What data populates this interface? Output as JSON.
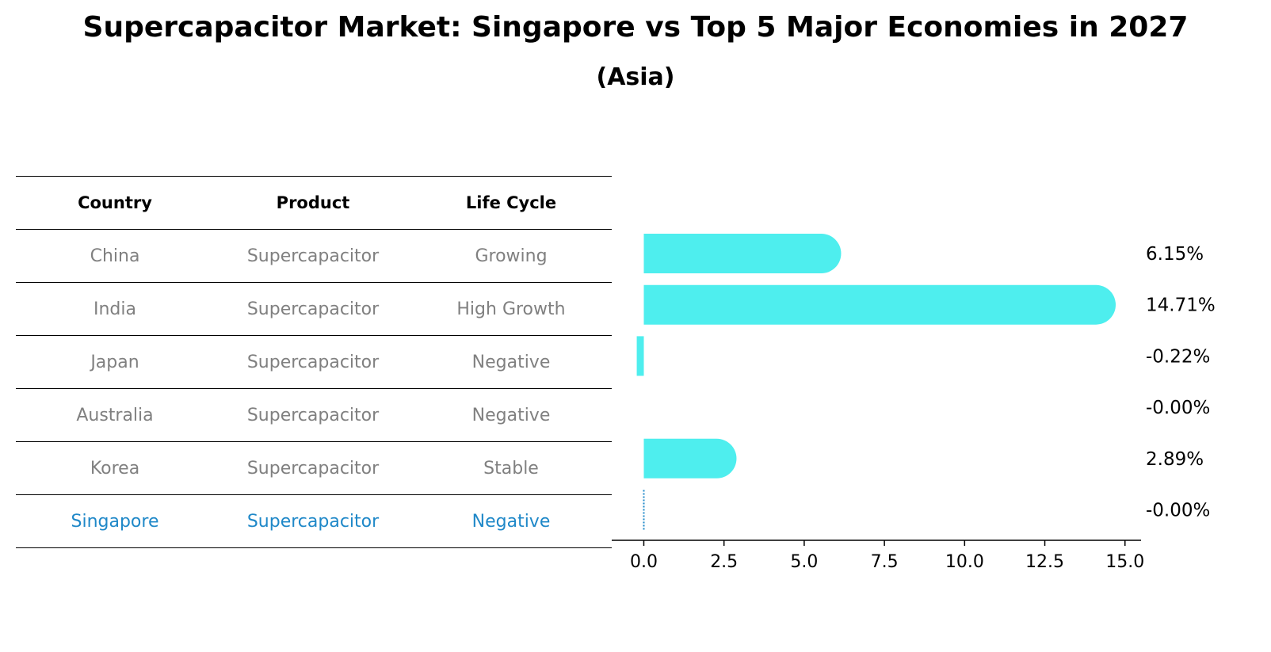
{
  "title": "Supercapacitor Market: Singapore vs Top 5 Major Economies in 2027",
  "subtitle": "(Asia)",
  "table": {
    "headers": [
      "Country",
      "Product",
      "Life Cycle"
    ],
    "rows": [
      [
        "China",
        "Supercapacitor",
        "Growing"
      ],
      [
        "India",
        "Supercapacitor",
        "High Growth"
      ],
      [
        "Japan",
        "Supercapacitor",
        "Negative"
      ],
      [
        "Australia",
        "Supercapacitor",
        "Negative"
      ],
      [
        "Korea",
        "Supercapacitor",
        "Stable"
      ],
      [
        "Singapore",
        "Supercapacitor",
        "Negative"
      ]
    ],
    "highlight_row": 5
  },
  "colors": {
    "bar": "#4eeeee",
    "highlight": "#1f88c8",
    "muted_text": "#808080"
  },
  "chart_data": {
    "type": "bar",
    "orientation": "horizontal",
    "categories": [
      "China",
      "India",
      "Japan",
      "Australia",
      "Korea",
      "Singapore"
    ],
    "values": [
      6.15,
      14.71,
      -0.22,
      -0.0,
      2.89,
      -0.0
    ],
    "value_labels": [
      "6.15%",
      "14.71%",
      "-0.22%",
      "-0.00%",
      "2.89%",
      "-0.00%"
    ],
    "xlim": [
      -1,
      15.5
    ],
    "xticks": [
      0.0,
      2.5,
      5.0,
      7.5,
      10.0,
      12.5,
      15.0
    ],
    "xtick_labels": [
      "0.0",
      "2.5",
      "5.0",
      "7.5",
      "10.0",
      "12.5",
      "15.0"
    ],
    "xlabel": "",
    "ylabel": "",
    "grid": false
  }
}
